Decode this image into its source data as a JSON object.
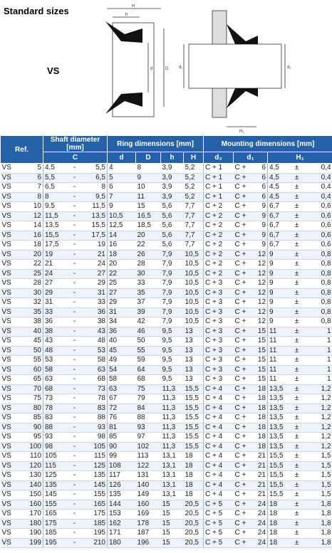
{
  "header": {
    "title": "Standard sizes",
    "label": "VS"
  },
  "drawing": {
    "left": [
      "H",
      "h",
      "d",
      "D"
    ],
    "right": [
      "d₁",
      "d₂",
      "H₁"
    ]
  },
  "table": {
    "group_headers": [
      "Ref.",
      "Shaft diameter [mm]",
      "Ring dimensions [mm]",
      "Mounting dimensions [mm]"
    ],
    "column_headers": [
      "C",
      "d",
      "D",
      "h",
      "H",
      "d₂",
      "d₁",
      "H₁"
    ],
    "rows": [
      [
        "VS",
        "5",
        "4,5",
        "-",
        "5,5",
        "4",
        "8",
        "3,9",
        "5,2",
        "C + 1",
        "C +",
        "6",
        "4,5",
        "±",
        "0,4"
      ],
      [
        "VS",
        "6",
        "5,5",
        "-",
        "6,5",
        "5",
        "9",
        "3,9",
        "5,2",
        "C + 1",
        "C +",
        "6",
        "4,5",
        "±",
        "0,4"
      ],
      [
        "VS",
        "7",
        "6,5",
        "-",
        "8",
        "6",
        "10",
        "3,9",
        "5,2",
        "C + 1",
        "C +",
        "6",
        "4,5",
        "±",
        "0,4"
      ],
      [
        "VS",
        "8",
        "8",
        "-",
        "9,5",
        "7",
        "11",
        "3,9",
        "5,2",
        "C + 1",
        "C +",
        "6",
        "4,5",
        "±",
        "0,4"
      ],
      [
        "VS",
        "10",
        "9,5",
        "-",
        "11,5",
        "9",
        "15",
        "5,6",
        "7,7",
        "C + 2",
        "C +",
        "9",
        "6,7",
        "±",
        "0,6"
      ],
      [
        "VS",
        "12",
        "11,5",
        "-",
        "13,5",
        "10,5",
        "16,5",
        "5,6",
        "7,7",
        "C + 2",
        "C +",
        "9",
        "6,7",
        "±",
        "0,6"
      ],
      [
        "VS",
        "14",
        "13,5",
        "-",
        "15,5",
        "12,5",
        "18,5",
        "5,6",
        "7,7",
        "C + 2",
        "C +",
        "9",
        "6,7",
        "±",
        "0,6"
      ],
      [
        "VS",
        "16",
        "15,5",
        "-",
        "17,5",
        "14",
        "20",
        "5,6",
        "7,7",
        "C + 2",
        "C +",
        "9",
        "6,7",
        "±",
        "0,6"
      ],
      [
        "VS",
        "18",
        "17,5",
        "-",
        "19",
        "16",
        "22",
        "5,6",
        "7,7",
        "C + 2",
        "C +",
        "9",
        "6,7",
        "±",
        "0,6"
      ],
      [
        "VS",
        "20",
        "19",
        "-",
        "21",
        "18",
        "26",
        "7,9",
        "10,5",
        "C + 2",
        "C +",
        "12",
        "9",
        "±",
        "0,8"
      ],
      [
        "VS",
        "22",
        "21",
        "-",
        "24",
        "20",
        "28",
        "7,9",
        "10,5",
        "C + 2",
        "C +",
        "12",
        "9",
        "±",
        "0,8"
      ],
      [
        "VS",
        "25",
        "24",
        "-",
        "27",
        "22",
        "30",
        "7,9",
        "10,5",
        "C + 2",
        "C +",
        "12",
        "9",
        "±",
        "0,8"
      ],
      [
        "VS",
        "28",
        "27",
        "-",
        "29",
        "25",
        "33",
        "7,9",
        "10,5",
        "C + 3",
        "C +",
        "12",
        "9",
        "±",
        "0,8"
      ],
      [
        "VS",
        "30",
        "29",
        "-",
        "31",
        "27",
        "35",
        "7,9",
        "10,5",
        "C + 3",
        "C +",
        "12",
        "9",
        "±",
        "0,8"
      ],
      [
        "VS",
        "32",
        "31",
        "-",
        "33",
        "29",
        "37",
        "7,9",
        "10,5",
        "C + 3",
        "C +",
        "12",
        "9",
        "±",
        "0,8"
      ],
      [
        "VS",
        "35",
        "33",
        "-",
        "36",
        "31",
        "39",
        "7,9",
        "10,5",
        "C + 3",
        "C +",
        "12",
        "9",
        "±",
        "0,8"
      ],
      [
        "VS",
        "38",
        "36",
        "-",
        "38",
        "34",
        "42",
        "7,9",
        "10,5",
        "C + 3",
        "C +",
        "12",
        "9",
        "±",
        "0,8"
      ],
      [
        "VS",
        "40",
        "38",
        "-",
        "43",
        "36",
        "46",
        "9,5",
        "13",
        "C + 3",
        "C +",
        "15",
        "11",
        "±",
        "1"
      ],
      [
        "VS",
        "45",
        "43",
        "-",
        "48",
        "40",
        "50",
        "9,5",
        "13",
        "C + 3",
        "C +",
        "15",
        "11",
        "±",
        "1"
      ],
      [
        "VS",
        "50",
        "48",
        "-",
        "53",
        "45",
        "55",
        "9,5",
        "13",
        "C + 3",
        "C +",
        "15",
        "11",
        "±",
        "1"
      ],
      [
        "VS",
        "55",
        "53",
        "-",
        "58",
        "49",
        "59",
        "9,5",
        "13",
        "C + 3",
        "C +",
        "15",
        "11",
        "±",
        "1"
      ],
      [
        "VS",
        "60",
        "58",
        "-",
        "63",
        "54",
        "64",
        "9,5",
        "13",
        "C + 3",
        "C +",
        "15",
        "11",
        "±",
        "1"
      ],
      [
        "VS",
        "65",
        "63",
        "-",
        "68",
        "58",
        "68",
        "9,5",
        "13",
        "C + 3",
        "C +",
        "15",
        "11",
        "±",
        "1"
      ],
      [
        "VS",
        "70",
        "68",
        "-",
        "73",
        "63",
        "75",
        "11,3",
        "15,5",
        "C + 4",
        "C +",
        "18",
        "13,5",
        "±",
        "1,2"
      ],
      [
        "VS",
        "75",
        "73",
        "-",
        "78",
        "67",
        "79",
        "11,3",
        "15,5",
        "C + 4",
        "C +",
        "18",
        "13,5",
        "±",
        "1,2"
      ],
      [
        "VS",
        "80",
        "78",
        "-",
        "83",
        "72",
        "84",
        "11,3",
        "15,5",
        "C + 4",
        "C +",
        "18",
        "13,5",
        "±",
        "1,2"
      ],
      [
        "VS",
        "85",
        "83",
        "-",
        "88",
        "76",
        "88",
        "11,3",
        "15,5",
        "C + 4",
        "C +",
        "18",
        "13,5",
        "±",
        "1,2"
      ],
      [
        "VS",
        "90",
        "88",
        "-",
        "93",
        "81",
        "93",
        "11,3",
        "15,5",
        "C + 4",
        "C +",
        "18",
        "13,5",
        "±",
        "1,2"
      ],
      [
        "VS",
        "95",
        "93",
        "-",
        "98",
        "85",
        "97",
        "11,3",
        "15,5",
        "C + 4",
        "C +",
        "18",
        "13,5",
        "±",
        "1,2"
      ],
      [
        "VS",
        "100",
        "98",
        "-",
        "105",
        "90",
        "102",
        "11,3",
        "15,5",
        "C + 4",
        "C +",
        "18",
        "13,5",
        "±",
        "1,2"
      ],
      [
        "VS",
        "110",
        "105",
        "-",
        "115",
        "99",
        "113",
        "13,1",
        "18",
        "C + 4",
        "C +",
        "21",
        "15,5",
        "±",
        "1,5"
      ],
      [
        "VS",
        "120",
        "115",
        "-",
        "125",
        "108",
        "122",
        "13,1",
        "18",
        "C + 4",
        "C +",
        "21",
        "15,5",
        "±",
        "1,5"
      ],
      [
        "VS",
        "130",
        "125",
        "-",
        "135",
        "117",
        "131",
        "13,1",
        "18",
        "C + 4",
        "C +",
        "21",
        "15,5",
        "±",
        "1,5"
      ],
      [
        "VS",
        "140",
        "135",
        "-",
        "145",
        "126",
        "140",
        "13,1",
        "18",
        "C + 4",
        "C +",
        "21",
        "15,5",
        "±",
        "1,5"
      ],
      [
        "VS",
        "150",
        "145",
        "-",
        "155",
        "135",
        "149",
        "13,1",
        "18",
        "C + 4",
        "C +",
        "21",
        "15,5",
        "±",
        "1,5"
      ],
      [
        "VS",
        "160",
        "155",
        "-",
        "165",
        "144",
        "160",
        "15",
        "20,5",
        "C + 5",
        "C +",
        "24",
        "18",
        "±",
        "1,8"
      ],
      [
        "VS",
        "170",
        "165",
        "-",
        "175",
        "153",
        "169",
        "15",
        "20,5",
        "C + 5",
        "C +",
        "24",
        "18",
        "±",
        "1,8"
      ],
      [
        "VS",
        "180",
        "175",
        "-",
        "185",
        "162",
        "178",
        "15",
        "20,5",
        "C + 5",
        "C +",
        "24",
        "18",
        "±",
        "1,8"
      ],
      [
        "VS",
        "190",
        "185",
        "-",
        "195",
        "171",
        "187",
        "15",
        "20,5",
        "C + 5",
        "C +",
        "24",
        "18",
        "±",
        "1,8"
      ],
      [
        "VS",
        "199",
        "195",
        "-",
        "210",
        "180",
        "196",
        "15",
        "20,5",
        "C + 5",
        "C +",
        "24",
        "18",
        "±",
        "1,8"
      ]
    ]
  }
}
